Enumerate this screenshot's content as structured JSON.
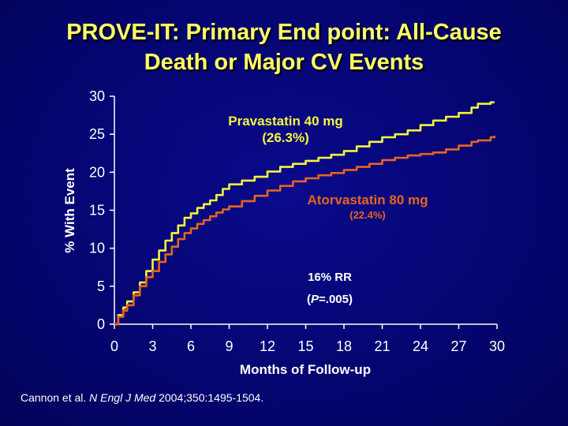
{
  "title": {
    "line1": "PROVE-IT: Primary End point: All-Cause",
    "line2": "Death or Major CV Events"
  },
  "citation": {
    "authors": "Cannon et al. ",
    "journal": "N Engl J Med",
    "details": " 2004;350:1495-1504."
  },
  "colors": {
    "background": "#05057a",
    "title": "#ffff66",
    "pravastatin": "#f5f53c",
    "atorvastatin": "#e8641e",
    "axis": "#ffffff"
  },
  "chart_data": {
    "type": "line",
    "xlabel": "Months of Follow-up",
    "ylabel": "% With Event",
    "xlim": [
      0,
      30
    ],
    "ylim": [
      0,
      30
    ],
    "xticks": [
      0,
      3,
      6,
      9,
      12,
      15,
      18,
      21,
      24,
      27,
      30
    ],
    "yticks": [
      0,
      5,
      10,
      15,
      20,
      25,
      30
    ],
    "grid": false,
    "series": [
      {
        "name": "Pravastatin 40 mg",
        "sublabel": "(26.3%)",
        "x": [
          0,
          0.3,
          0.7,
          1,
          1.5,
          2,
          2.5,
          3,
          3.5,
          4,
          4.5,
          5,
          5.5,
          6,
          6.5,
          7,
          7.5,
          8,
          8.5,
          9,
          10,
          11,
          12,
          13,
          14,
          15,
          16,
          17,
          18,
          19,
          20,
          21,
          22,
          23,
          24,
          25,
          26,
          27,
          28,
          28.5,
          29,
          29.5,
          29.8
        ],
        "y": [
          0,
          1.2,
          2.2,
          3,
          4.2,
          5.5,
          7,
          8.5,
          9.7,
          11,
          12,
          13,
          14,
          14.6,
          15.3,
          15.8,
          16.3,
          17,
          17.8,
          18.4,
          18.9,
          19.4,
          20.1,
          20.7,
          21.1,
          21.5,
          21.9,
          22.3,
          22.8,
          23.4,
          24,
          24.6,
          25,
          25.5,
          26.2,
          26.8,
          27.3,
          27.8,
          28.5,
          29,
          29,
          29.2,
          29.2
        ]
      },
      {
        "name": "Atorvastatin 80 mg",
        "sublabel": "(22.4%)",
        "x": [
          0,
          0.3,
          0.7,
          1,
          1.5,
          2,
          2.5,
          3,
          3.5,
          4,
          4.5,
          5,
          5.5,
          6,
          6.5,
          7,
          7.5,
          8,
          8.5,
          9,
          10,
          11,
          12,
          13,
          14,
          15,
          16,
          17,
          18,
          19,
          20,
          21,
          22,
          23,
          24,
          25,
          26,
          27,
          28,
          28.5,
          29,
          29.5,
          29.8
        ],
        "y": [
          0,
          1,
          1.8,
          2.5,
          3.8,
          5,
          6.2,
          7,
          8.2,
          9.2,
          10.2,
          11.2,
          12,
          12.6,
          13.2,
          13.7,
          14.2,
          14.7,
          15.1,
          15.5,
          16.2,
          16.9,
          17.6,
          18.2,
          18.8,
          19.2,
          19.6,
          19.9,
          20.3,
          20.7,
          21.1,
          21.6,
          21.9,
          22.2,
          22.4,
          22.6,
          23,
          23.5,
          24,
          24.2,
          24.2,
          24.6,
          24.8
        ]
      }
    ],
    "annotation": {
      "line1": "16% RR",
      "line2_open": "(",
      "line2_p": "P",
      "line2_rest": "=.005)"
    }
  }
}
